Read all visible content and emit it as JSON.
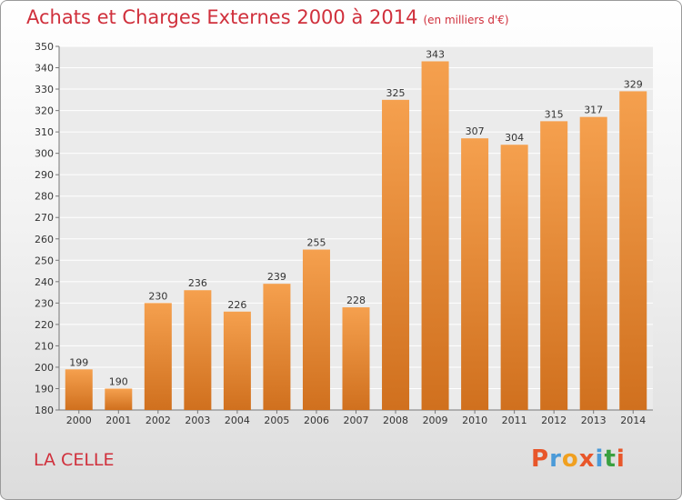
{
  "header": {
    "title": "Achats et Charges Externes 2000 à 2014",
    "unit": "(en milliers d'€)"
  },
  "footer": {
    "place": "LA CELLE",
    "brand": [
      "P",
      "r",
      "o",
      "x",
      "i",
      "t",
      "i"
    ]
  },
  "colors": {
    "title": "#d0303c",
    "bar_top": "#f5a04e",
    "bar_bottom": "#d0701e",
    "brand": [
      "#e8562a",
      "#4a9ad8",
      "#f0a020",
      "#e8562a",
      "#4a9ad8",
      "#3aa040",
      "#e8562a"
    ]
  },
  "chart_data": {
    "type": "bar",
    "title": "Achats et Charges Externes 2000 à 2014",
    "categories": [
      "2000",
      "2001",
      "2002",
      "2003",
      "2004",
      "2005",
      "2006",
      "2007",
      "2008",
      "2009",
      "2010",
      "2011",
      "2012",
      "2013",
      "2014"
    ],
    "values": [
      199,
      190,
      230,
      236,
      226,
      239,
      255,
      228,
      325,
      343,
      307,
      304,
      315,
      317,
      329
    ],
    "ylim": [
      180,
      350
    ],
    "yticks": [
      180,
      190,
      200,
      210,
      220,
      230,
      240,
      250,
      260,
      270,
      280,
      290,
      300,
      310,
      320,
      330,
      340,
      350
    ],
    "grid": true
  }
}
